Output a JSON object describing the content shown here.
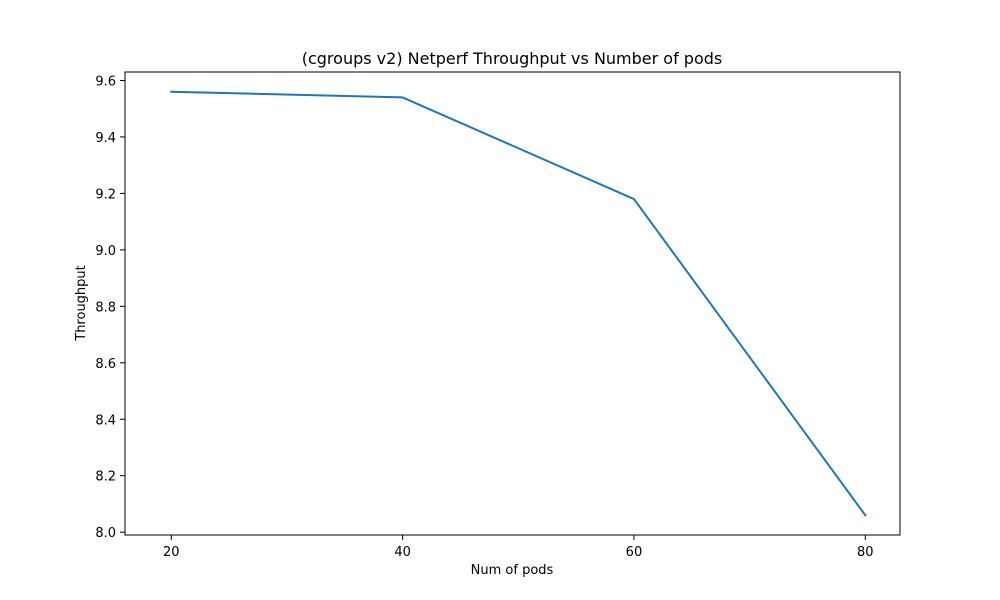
{
  "chart_data": {
    "type": "line",
    "title": "(cgroups v2) Netperf Throughput vs Number of pods",
    "xlabel": "Num of pods",
    "ylabel": "Throughput",
    "x": [
      20,
      40,
      60,
      80
    ],
    "series": [
      {
        "values": [
          9.56,
          9.54,
          9.18,
          8.06
        ],
        "color": "#1f77b4"
      }
    ],
    "xlim": [
      16,
      83
    ],
    "ylim": [
      7.99,
      9.63
    ],
    "xticks": [
      20,
      40,
      60,
      80
    ],
    "xtick_labels": [
      "20",
      "40",
      "60",
      "80"
    ],
    "yticks": [
      8.0,
      8.2,
      8.4,
      8.6,
      8.8,
      9.0,
      9.2,
      9.4,
      9.6
    ],
    "ytick_labels": [
      "8.0",
      "8.2",
      "8.4",
      "8.6",
      "8.8",
      "9.0",
      "9.2",
      "9.4",
      "9.6"
    ],
    "grid": false,
    "legend": "none"
  }
}
